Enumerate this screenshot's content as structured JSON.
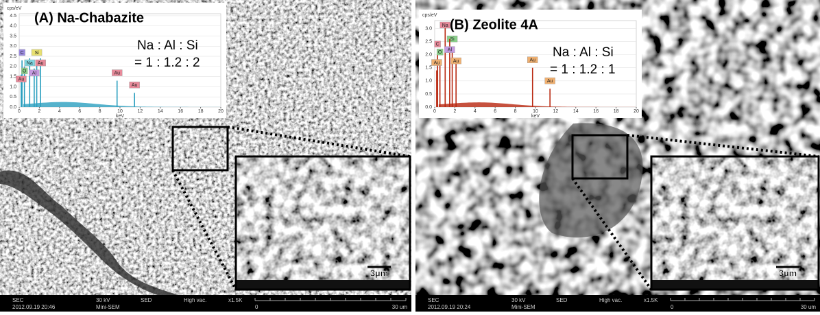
{
  "panels": [
    {
      "title": "(A) Na-Chabazite",
      "ratio_label": "Na : Al : Si",
      "ratio_value": "= 1 : 1.2 : 2",
      "spectrum": {
        "y_unit": "cps/eV",
        "x_label": "keV",
        "xlim": [
          0,
          20
        ],
        "xticks": [
          0,
          2,
          4,
          6,
          8,
          10,
          12,
          14,
          16,
          18,
          20
        ],
        "ylim": [
          0,
          4.6
        ],
        "yticks": [
          {
            "value": 0,
            "label": "0.0"
          },
          {
            "value": 0.5,
            "label": "0.5"
          },
          {
            "value": 1,
            "label": "1.0"
          },
          {
            "value": 1.5,
            "label": "1.5"
          },
          {
            "value": 2,
            "label": "2.0"
          },
          {
            "value": 2.5,
            "label": "2.5"
          },
          {
            "value": 3,
            "label": "3.0"
          },
          {
            "value": 3.5,
            "label": "3.5"
          },
          {
            "value": 4,
            "label": "4.0"
          },
          {
            "value": 4.5,
            "label": "4.5"
          }
        ],
        "color": "#2b9fbf",
        "peaks": [
          {
            "label": "C",
            "x": 0.28,
            "y": 2.3,
            "color": "#9b8be0"
          },
          {
            "label": "Na",
            "x": 1.04,
            "y": 2.4,
            "color": "#7fd6e0"
          },
          {
            "label": "O",
            "x": 0.52,
            "y": 2.0,
            "color": "#8ad08a"
          },
          {
            "label": "Si",
            "x": 1.74,
            "y": 2.3,
            "color": "#e8e070"
          },
          {
            "label": "Au",
            "x": 0.2,
            "y": 1.6,
            "color": "#e88a9a"
          },
          {
            "label": "Al",
            "x": 1.49,
            "y": 1.9,
            "color": "#c59ae0"
          },
          {
            "label": "Au",
            "x": 2.12,
            "y": 2.4,
            "color": "#e88a9a"
          },
          {
            "label": "Au",
            "x": 9.71,
            "y": 1.3,
            "color": "#e88a9a"
          },
          {
            "label": "Au",
            "x": 11.44,
            "y": 0.7,
            "color": "#e88a9a"
          }
        ]
      },
      "scale_bar": "3µm",
      "footer": {
        "mode": "SEC",
        "date": "2012.09.19 20:46",
        "voltage": "30 kV",
        "device": "Mini-SEM",
        "detector": "SED",
        "vacuum": "High vac.",
        "magnification": "x1.5K",
        "scale_start": "0",
        "scale_end": "30 um"
      }
    },
    {
      "title": "(B) Zeolite 4A",
      "ratio_label": "Na : Al : Si",
      "ratio_value": "= 1 : 1.2 : 1",
      "spectrum": {
        "y_unit": "cps/eV",
        "x_label": "keV",
        "xlim": [
          0,
          20
        ],
        "xticks": [
          0,
          2,
          4,
          6,
          8,
          10,
          12,
          14,
          16,
          18,
          20
        ],
        "ylim": [
          0,
          3.3
        ],
        "yticks": [
          {
            "value": 0,
            "label": "0.0"
          },
          {
            "value": 0.5,
            "label": "0.5"
          },
          {
            "value": 1,
            "label": "1.0"
          },
          {
            "value": 1.5,
            "label": "1.5"
          },
          {
            "value": 2,
            "label": "2.0"
          },
          {
            "value": 2.5,
            "label": "2.5"
          },
          {
            "value": 3,
            "label": "3.0"
          }
        ],
        "color": "#b8260e",
        "peaks": [
          {
            "label": "C",
            "x": 0.28,
            "y": 2.1,
            "color": "#e88a9a"
          },
          {
            "label": "Na",
            "x": 1.04,
            "y": 3.2,
            "color": "#e88a9a"
          },
          {
            "label": "O",
            "x": 0.52,
            "y": 1.8,
            "color": "#8ad08a"
          },
          {
            "label": "Si",
            "x": 1.74,
            "y": 2.3,
            "color": "#8ad08a"
          },
          {
            "label": "Au",
            "x": 0.2,
            "y": 1.4,
            "color": "#f0b070"
          },
          {
            "label": "Al",
            "x": 1.49,
            "y": 2.6,
            "color": "#c59ae0"
          },
          {
            "label": "Au",
            "x": 2.12,
            "y": 1.7,
            "color": "#f0b070"
          },
          {
            "label": "Au",
            "x": 9.71,
            "y": 1.5,
            "color": "#f0b070"
          },
          {
            "label": "Au",
            "x": 11.44,
            "y": 0.7,
            "color": "#f0b070"
          }
        ]
      },
      "scale_bar": "3µm",
      "footer": {
        "mode": "SEC",
        "date": "2012.09.19 20:24",
        "voltage": "30 kV",
        "device": "Mini-SEM",
        "detector": "SED",
        "vacuum": "High vac.",
        "magnification": "x1.5K",
        "scale_start": "0",
        "scale_end": "30 um"
      }
    }
  ]
}
